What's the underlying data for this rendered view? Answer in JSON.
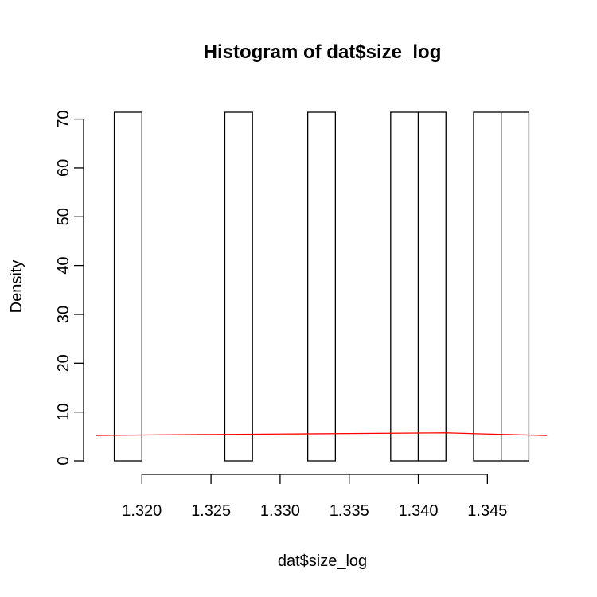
{
  "chart_data": {
    "type": "bar",
    "title": "Histogram of dat$size_log",
    "xlabel": "dat$size_log",
    "ylabel": "Density",
    "bins": [
      {
        "x0": 1.318,
        "x1": 1.32,
        "density": 71.4
      },
      {
        "x0": 1.32,
        "x1": 1.322,
        "density": 0
      },
      {
        "x0": 1.322,
        "x1": 1.324,
        "density": 0
      },
      {
        "x0": 1.324,
        "x1": 1.326,
        "density": 0
      },
      {
        "x0": 1.326,
        "x1": 1.328,
        "density": 71.4
      },
      {
        "x0": 1.328,
        "x1": 1.33,
        "density": 0
      },
      {
        "x0": 1.33,
        "x1": 1.332,
        "density": 0
      },
      {
        "x0": 1.332,
        "x1": 1.334,
        "density": 71.4
      },
      {
        "x0": 1.334,
        "x1": 1.336,
        "density": 0
      },
      {
        "x0": 1.336,
        "x1": 1.338,
        "density": 0
      },
      {
        "x0": 1.338,
        "x1": 1.34,
        "density": 71.4
      },
      {
        "x0": 1.34,
        "x1": 1.342,
        "density": 71.4
      },
      {
        "x0": 1.342,
        "x1": 1.344,
        "density": 0
      },
      {
        "x0": 1.344,
        "x1": 1.346,
        "density": 71.4
      },
      {
        "x0": 1.346,
        "x1": 1.348,
        "density": 71.4
      }
    ],
    "density_curve": {
      "color": "#ff0000",
      "x": [
        1.3167,
        1.32,
        1.325,
        1.33,
        1.335,
        1.34,
        1.342,
        1.345,
        1.3493
      ],
      "y": [
        5.2,
        5.3,
        5.4,
        5.5,
        5.6,
        5.7,
        5.75,
        5.5,
        5.2
      ]
    },
    "x_ticks": [
      "1.320",
      "1.325",
      "1.330",
      "1.335",
      "1.340",
      "1.345"
    ],
    "x_tick_values": [
      1.32,
      1.325,
      1.33,
      1.335,
      1.34,
      1.345
    ],
    "y_ticks": [
      "0",
      "10",
      "20",
      "30",
      "40",
      "50",
      "60",
      "70"
    ],
    "y_tick_values": [
      0,
      10,
      20,
      30,
      40,
      50,
      60,
      70
    ],
    "xlim": [
      1.3167,
      1.3493
    ],
    "ylim": [
      0,
      71.4
    ],
    "grid": false,
    "bar_fill": "#ffffff",
    "bar_stroke": "#000000"
  }
}
